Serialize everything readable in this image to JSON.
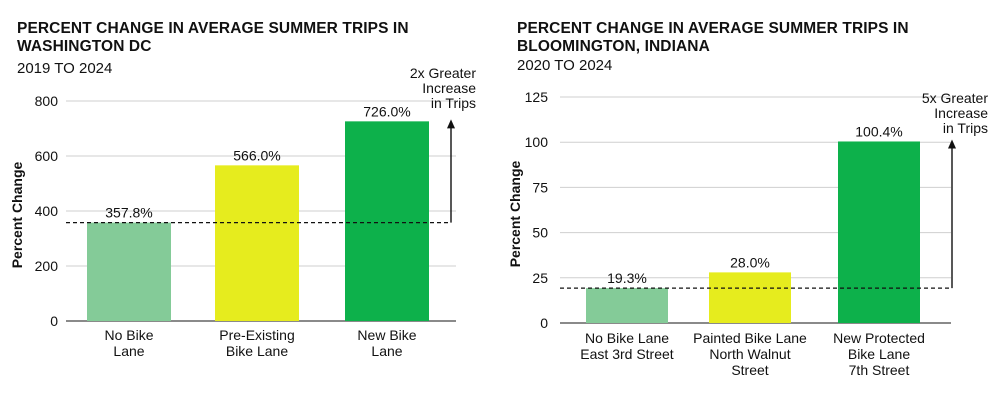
{
  "chart_data": [
    {
      "type": "bar",
      "title": "PERCENT CHANGE IN AVERAGE SUMMER TRIPS IN WASHINGTON DC",
      "subtitle": "2019 TO 2024",
      "ylabel": "Percent Change",
      "xlabel": "",
      "ylim": [
        0,
        800
      ],
      "yticks": [
        0,
        200,
        400,
        600,
        800
      ],
      "grid": true,
      "categories": [
        [
          "No Bike",
          "Lane"
        ],
        [
          "Pre-Existing",
          "Bike Lane"
        ],
        [
          "New Bike",
          "Lane"
        ]
      ],
      "values": [
        357.8,
        566.0,
        726.0
      ],
      "data_labels": [
        "357.8%",
        "566.0%",
        "726.0%"
      ],
      "colors": [
        "#84cb98",
        "#e6ec1e",
        "#0db14b"
      ],
      "reference_line": 357.8,
      "annotation": [
        "2x Greater",
        "Increase",
        "in Trips"
      ]
    },
    {
      "type": "bar",
      "title": "PERCENT CHANGE IN AVERAGE SUMMER TRIPS IN BLOOMINGTON, INDIANA",
      "subtitle": "2020 TO 2024",
      "ylabel": "Percent Change",
      "xlabel": "",
      "ylim": [
        0,
        125
      ],
      "yticks": [
        0,
        25,
        50,
        75,
        100,
        125
      ],
      "grid": true,
      "categories": [
        [
          "No Bike Lane",
          "East 3rd Street"
        ],
        [
          "Painted Bike Lane",
          "North Walnut",
          "Street"
        ],
        [
          "New Protected",
          "Bike Lane",
          "7th Street"
        ]
      ],
      "values": [
        19.3,
        28.0,
        100.4
      ],
      "data_labels": [
        "19.3%",
        "28.0%",
        "100.4%"
      ],
      "colors": [
        "#84cb98",
        "#e6ec1e",
        "#0db14b"
      ],
      "reference_line": 19.3,
      "annotation": [
        "5x Greater",
        "Increase",
        "in Trips"
      ]
    }
  ]
}
